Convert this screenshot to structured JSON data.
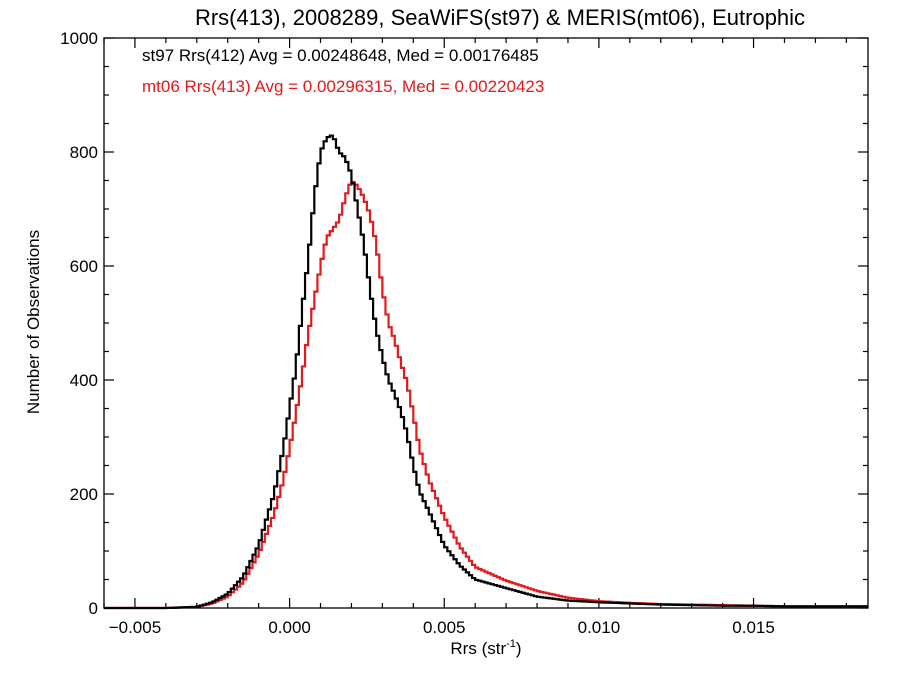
{
  "chart_data": {
    "type": "histogram",
    "title": "Rrs(413), 2008289, SeaWiFS(st97) & MERIS(mt06), Eutrophic",
    "xlabel_main": "Rrs (str",
    "xlabel_sup": "-1",
    "xlabel_tail": ")",
    "ylabel": "Number of Observations",
    "xlim": [
      -0.006,
      0.0187
    ],
    "ylim": [
      0,
      1000
    ],
    "xticks": [
      -0.005,
      0.0,
      0.005,
      0.01,
      0.015
    ],
    "xtick_labels": [
      "−0.005",
      "0.000",
      "0.005",
      "0.010",
      "0.015"
    ],
    "xminor_step": 0.001,
    "yticks": [
      0,
      200,
      400,
      600,
      800,
      1000
    ],
    "ytick_labels": [
      "0",
      "200",
      "400",
      "600",
      "800",
      "1000"
    ],
    "yminor_step": 50,
    "grid": false,
    "legend_position": "top-left",
    "series": [
      {
        "id": "st97",
        "label": "st97 Rrs(412) Avg = 0.00248648, Med = 0.00176485",
        "color": "#000000",
        "points": [
          [
            -0.006,
            0
          ],
          [
            -0.004,
            0
          ],
          [
            -0.003,
            2
          ],
          [
            -0.0025,
            10
          ],
          [
            -0.002,
            25
          ],
          [
            -0.0015,
            55
          ],
          [
            -0.001,
            110
          ],
          [
            -0.0005,
            200
          ],
          [
            -0.0002,
            280
          ],
          [
            0.0,
            350
          ],
          [
            0.0002,
            420
          ],
          [
            0.0004,
            520
          ],
          [
            0.0006,
            610
          ],
          [
            0.0008,
            720
          ],
          [
            0.001,
            800
          ],
          [
            0.0012,
            825
          ],
          [
            0.0014,
            830
          ],
          [
            0.0016,
            800
          ],
          [
            0.0018,
            790
          ],
          [
            0.002,
            760
          ],
          [
            0.0022,
            700
          ],
          [
            0.0024,
            640
          ],
          [
            0.0026,
            560
          ],
          [
            0.0028,
            490
          ],
          [
            0.003,
            440
          ],
          [
            0.0032,
            400
          ],
          [
            0.0034,
            375
          ],
          [
            0.0036,
            345
          ],
          [
            0.0038,
            305
          ],
          [
            0.004,
            250
          ],
          [
            0.0042,
            205
          ],
          [
            0.0045,
            170
          ],
          [
            0.005,
            110
          ],
          [
            0.0055,
            75
          ],
          [
            0.006,
            50
          ],
          [
            0.007,
            35
          ],
          [
            0.008,
            20
          ],
          [
            0.009,
            13
          ],
          [
            0.01,
            10
          ],
          [
            0.011,
            8
          ],
          [
            0.012,
            6
          ],
          [
            0.013,
            5
          ],
          [
            0.014,
            4
          ],
          [
            0.015,
            4
          ],
          [
            0.016,
            3
          ],
          [
            0.017,
            3
          ],
          [
            0.018,
            3
          ],
          [
            0.0187,
            3
          ]
        ]
      },
      {
        "id": "mt06",
        "label": "mt06 Rrs(413) Avg = 0.00296315, Med = 0.00220423",
        "color": "#e31a1c",
        "points": [
          [
            -0.006,
            0
          ],
          [
            -0.004,
            0
          ],
          [
            -0.003,
            2
          ],
          [
            -0.0025,
            8
          ],
          [
            -0.002,
            20
          ],
          [
            -0.0015,
            45
          ],
          [
            -0.001,
            95
          ],
          [
            -0.0005,
            165
          ],
          [
            -0.0002,
            225
          ],
          [
            0.0,
            280
          ],
          [
            0.0002,
            340
          ],
          [
            0.0004,
            405
          ],
          [
            0.0006,
            480
          ],
          [
            0.0008,
            540
          ],
          [
            0.001,
            600
          ],
          [
            0.0012,
            650
          ],
          [
            0.0014,
            665
          ],
          [
            0.0016,
            680
          ],
          [
            0.0018,
            720
          ],
          [
            0.002,
            750
          ],
          [
            0.0022,
            740
          ],
          [
            0.0024,
            720
          ],
          [
            0.0026,
            690
          ],
          [
            0.0028,
            640
          ],
          [
            0.003,
            560
          ],
          [
            0.0032,
            500
          ],
          [
            0.0034,
            470
          ],
          [
            0.0036,
            430
          ],
          [
            0.0038,
            395
          ],
          [
            0.004,
            340
          ],
          [
            0.0042,
            280
          ],
          [
            0.0045,
            225
          ],
          [
            0.005,
            160
          ],
          [
            0.0055,
            108
          ],
          [
            0.006,
            72
          ],
          [
            0.007,
            48
          ],
          [
            0.008,
            30
          ],
          [
            0.009,
            18
          ],
          [
            0.01,
            12
          ],
          [
            0.011,
            9
          ],
          [
            0.012,
            7
          ],
          [
            0.013,
            6
          ],
          [
            0.014,
            5
          ],
          [
            0.015,
            4
          ],
          [
            0.016,
            3
          ],
          [
            0.017,
            3
          ],
          [
            0.018,
            3
          ],
          [
            0.0187,
            3
          ]
        ]
      }
    ]
  }
}
